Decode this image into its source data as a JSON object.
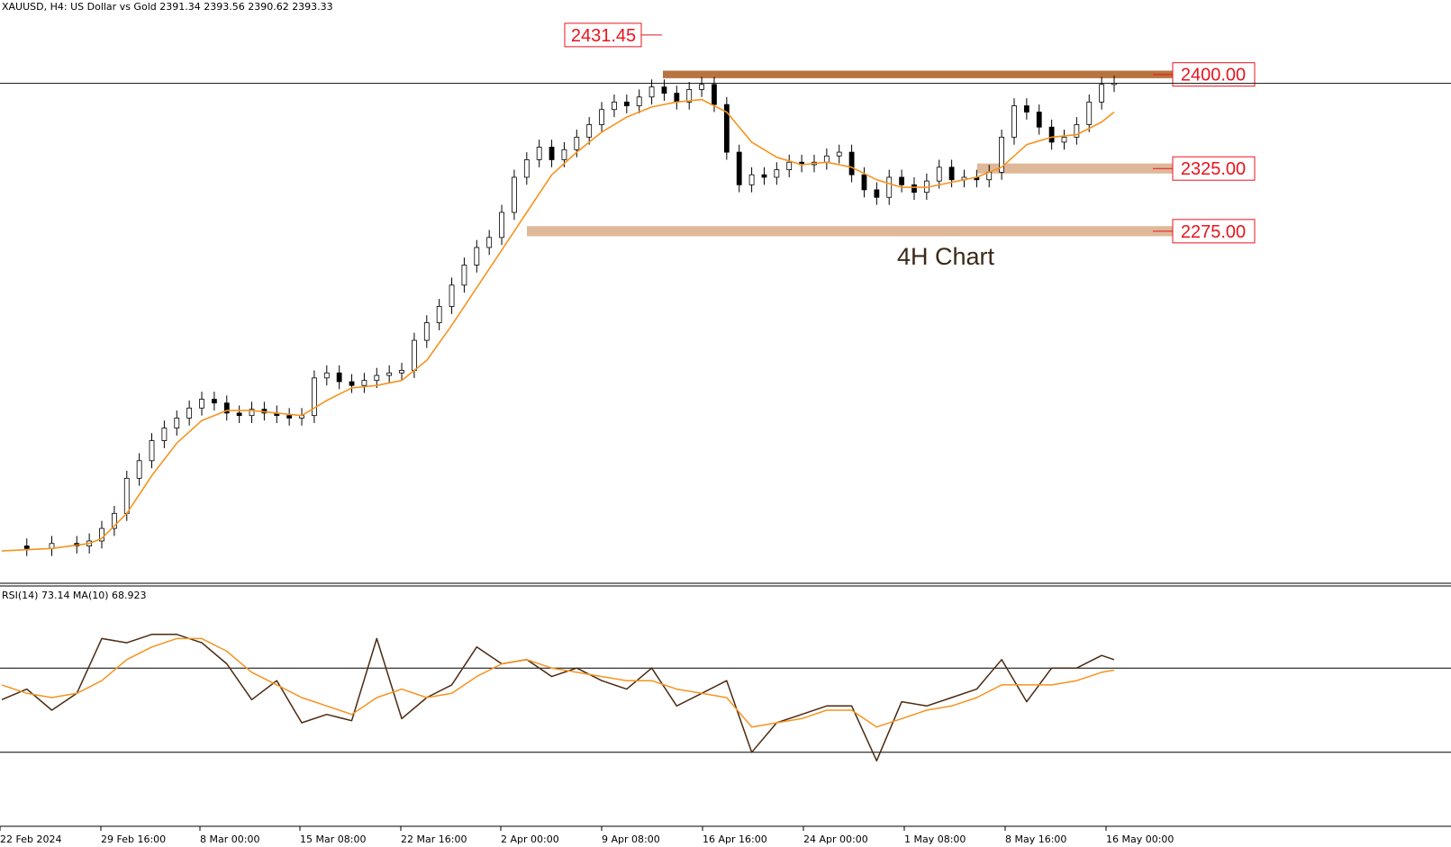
{
  "header": {
    "symbol": "XAUUSD, H4:",
    "description": "US Dollar vs Gold",
    "ohlc": "2391.34 2393.56 2390.62 2393.33"
  },
  "rsi_header": "RSI(14) 73.14 MA(10) 68.923",
  "annotation": "4H Chart",
  "peak_label": "2431.45",
  "levels": [
    {
      "label": "2400.00",
      "value": 2400,
      "color": "#b8743f",
      "band": [
        2397,
        2403
      ],
      "from_date": "11 Apr"
    },
    {
      "label": "2325.00",
      "value": 2325,
      "color": "#dfb89a",
      "band": [
        2321,
        2329
      ],
      "from_date": "7 May"
    },
    {
      "label": "2275.00",
      "value": 2275,
      "color": "#dfb89a",
      "band": [
        2271,
        2279
      ],
      "from_date": "2 Apr"
    }
  ],
  "colors": {
    "price": "#000000",
    "ma": "#f7931e",
    "rsi": "#4a2a12",
    "rsi_ma": "#f7931e",
    "label_text": "#e8141e"
  },
  "chart_data": {
    "type": "line",
    "title": "XAUUSD, H4: US Dollar vs Gold",
    "x_ticks": [
      "22 Feb 2024",
      "29 Feb 16:00",
      "8 Mar 00:00",
      "15 Mar 08:00",
      "22 Mar 16:00",
      "2 Apr 00:00",
      "9 Apr 08:00",
      "16 Apr 16:00",
      "24 Apr 00:00",
      "1 May 08:00",
      "8 May 16:00",
      "16 May 00:00"
    ],
    "x_range": [
      0,
      100
    ],
    "ylim": [
      2000,
      2445
    ],
    "series": [
      {
        "key": "close",
        "values": [
          [
            0,
            2024
          ],
          [
            2,
            2022
          ],
          [
            4,
            2026
          ],
          [
            6,
            2024
          ],
          [
            7,
            2028
          ],
          [
            8,
            2038
          ],
          [
            9,
            2050
          ],
          [
            10,
            2078
          ],
          [
            11,
            2092
          ],
          [
            12,
            2108
          ],
          [
            13,
            2118
          ],
          [
            14,
            2126
          ],
          [
            15,
            2134
          ],
          [
            16,
            2141
          ],
          [
            17,
            2138
          ],
          [
            18,
            2130
          ],
          [
            19,
            2128
          ],
          [
            20,
            2133
          ],
          [
            21,
            2130
          ],
          [
            22,
            2128
          ],
          [
            23,
            2126
          ],
          [
            24,
            2128
          ],
          [
            25,
            2158
          ],
          [
            26,
            2162
          ],
          [
            27,
            2155
          ],
          [
            28,
            2152
          ],
          [
            29,
            2156
          ],
          [
            30,
            2160
          ],
          [
            31,
            2162
          ],
          [
            32,
            2164
          ],
          [
            33,
            2188
          ],
          [
            34,
            2202
          ],
          [
            35,
            2215
          ],
          [
            36,
            2232
          ],
          [
            37,
            2248
          ],
          [
            38,
            2262
          ],
          [
            39,
            2270
          ],
          [
            40,
            2290
          ],
          [
            41,
            2318
          ],
          [
            42,
            2332
          ],
          [
            43,
            2342
          ],
          [
            44,
            2332
          ],
          [
            45,
            2340
          ],
          [
            46,
            2350
          ],
          [
            47,
            2360
          ],
          [
            48,
            2372
          ],
          [
            49,
            2378
          ],
          [
            50,
            2375
          ],
          [
            51,
            2382
          ],
          [
            52,
            2390
          ],
          [
            53,
            2385
          ],
          [
            54,
            2378
          ],
          [
            55,
            2388
          ],
          [
            56,
            2392
          ],
          [
            57,
            2376
          ],
          [
            58,
            2338
          ],
          [
            59,
            2312
          ],
          [
            60,
            2320
          ],
          [
            61,
            2318
          ],
          [
            62,
            2324
          ],
          [
            63,
            2330
          ],
          [
            64,
            2328
          ],
          [
            65,
            2330
          ],
          [
            66,
            2335
          ],
          [
            67,
            2338
          ],
          [
            68,
            2320
          ],
          [
            69,
            2308
          ],
          [
            70,
            2302
          ],
          [
            71,
            2318
          ],
          [
            72,
            2312
          ],
          [
            73,
            2306
          ],
          [
            74,
            2315
          ],
          [
            75,
            2326
          ],
          [
            76,
            2316
          ],
          [
            77,
            2318
          ],
          [
            78,
            2316
          ],
          [
            79,
            2322
          ],
          [
            80,
            2350
          ],
          [
            81,
            2375
          ],
          [
            82,
            2370
          ],
          [
            83,
            2358
          ],
          [
            84,
            2346
          ],
          [
            85,
            2350
          ],
          [
            86,
            2360
          ],
          [
            87,
            2378
          ],
          [
            88,
            2392
          ],
          [
            89,
            2393
          ]
        ]
      },
      {
        "key": "ma",
        "values": [
          [
            0,
            2020
          ],
          [
            4,
            2022
          ],
          [
            7,
            2026
          ],
          [
            8,
            2030
          ],
          [
            10,
            2050
          ],
          [
            12,
            2080
          ],
          [
            14,
            2106
          ],
          [
            16,
            2124
          ],
          [
            18,
            2132
          ],
          [
            20,
            2132
          ],
          [
            22,
            2130
          ],
          [
            24,
            2128
          ],
          [
            26,
            2140
          ],
          [
            28,
            2150
          ],
          [
            30,
            2152
          ],
          [
            32,
            2156
          ],
          [
            34,
            2172
          ],
          [
            36,
            2200
          ],
          [
            38,
            2230
          ],
          [
            40,
            2260
          ],
          [
            42,
            2290
          ],
          [
            44,
            2320
          ],
          [
            46,
            2338
          ],
          [
            48,
            2354
          ],
          [
            50,
            2366
          ],
          [
            52,
            2374
          ],
          [
            54,
            2378
          ],
          [
            56,
            2380
          ],
          [
            58,
            2370
          ],
          [
            60,
            2346
          ],
          [
            62,
            2334
          ],
          [
            64,
            2328
          ],
          [
            66,
            2330
          ],
          [
            68,
            2326
          ],
          [
            70,
            2316
          ],
          [
            72,
            2310
          ],
          [
            74,
            2310
          ],
          [
            76,
            2314
          ],
          [
            78,
            2318
          ],
          [
            80,
            2326
          ],
          [
            82,
            2344
          ],
          [
            84,
            2350
          ],
          [
            86,
            2352
          ],
          [
            88,
            2362
          ],
          [
            89,
            2370
          ]
        ]
      }
    ],
    "rsi": {
      "ylim": [
        0,
        100
      ],
      "levels": [
        70,
        30
      ],
      "series": [
        {
          "key": "rsi",
          "values": [
            [
              0,
              55
            ],
            [
              2,
              60
            ],
            [
              4,
              50
            ],
            [
              6,
              58
            ],
            [
              8,
              84
            ],
            [
              10,
              82
            ],
            [
              12,
              86
            ],
            [
              14,
              86
            ],
            [
              16,
              82
            ],
            [
              18,
              72
            ],
            [
              20,
              55
            ],
            [
              22,
              64
            ],
            [
              24,
              44
            ],
            [
              26,
              48
            ],
            [
              28,
              45
            ],
            [
              30,
              84
            ],
            [
              32,
              46
            ],
            [
              34,
              56
            ],
            [
              36,
              62
            ],
            [
              38,
              80
            ],
            [
              40,
              72
            ],
            [
              42,
              74
            ],
            [
              44,
              66
            ],
            [
              46,
              70
            ],
            [
              48,
              64
            ],
            [
              50,
              60
            ],
            [
              52,
              70
            ],
            [
              54,
              52
            ],
            [
              56,
              58
            ],
            [
              58,
              64
            ],
            [
              60,
              30
            ],
            [
              62,
              44
            ],
            [
              64,
              48
            ],
            [
              66,
              52
            ],
            [
              68,
              52
            ],
            [
              70,
              26
            ],
            [
              72,
              54
            ],
            [
              74,
              52
            ],
            [
              76,
              56
            ],
            [
              78,
              60
            ],
            [
              80,
              74
            ],
            [
              82,
              54
            ],
            [
              84,
              70
            ],
            [
              86,
              70
            ],
            [
              88,
              76
            ],
            [
              89,
              74
            ]
          ]
        },
        {
          "key": "rsi_ma",
          "values": [
            [
              0,
              62
            ],
            [
              2,
              58
            ],
            [
              4,
              56
            ],
            [
              6,
              58
            ],
            [
              8,
              64
            ],
            [
              10,
              74
            ],
            [
              12,
              80
            ],
            [
              14,
              84
            ],
            [
              16,
              84
            ],
            [
              18,
              78
            ],
            [
              20,
              68
            ],
            [
              22,
              62
            ],
            [
              24,
              56
            ],
            [
              26,
              52
            ],
            [
              28,
              48
            ],
            [
              30,
              56
            ],
            [
              32,
              60
            ],
            [
              34,
              56
            ],
            [
              36,
              58
            ],
            [
              38,
              66
            ],
            [
              40,
              72
            ],
            [
              42,
              74
            ],
            [
              44,
              70
            ],
            [
              46,
              68
            ],
            [
              48,
              66
            ],
            [
              50,
              64
            ],
            [
              52,
              64
            ],
            [
              54,
              60
            ],
            [
              56,
              58
            ],
            [
              58,
              56
            ],
            [
              60,
              42
            ],
            [
              62,
              44
            ],
            [
              64,
              46
            ],
            [
              66,
              50
            ],
            [
              68,
              50
            ],
            [
              70,
              42
            ],
            [
              72,
              46
            ],
            [
              74,
              50
            ],
            [
              76,
              52
            ],
            [
              78,
              56
            ],
            [
              80,
              62
            ],
            [
              82,
              62
            ],
            [
              84,
              62
            ],
            [
              86,
              64
            ],
            [
              88,
              68
            ],
            [
              89,
              69
            ]
          ]
        }
      ]
    }
  }
}
